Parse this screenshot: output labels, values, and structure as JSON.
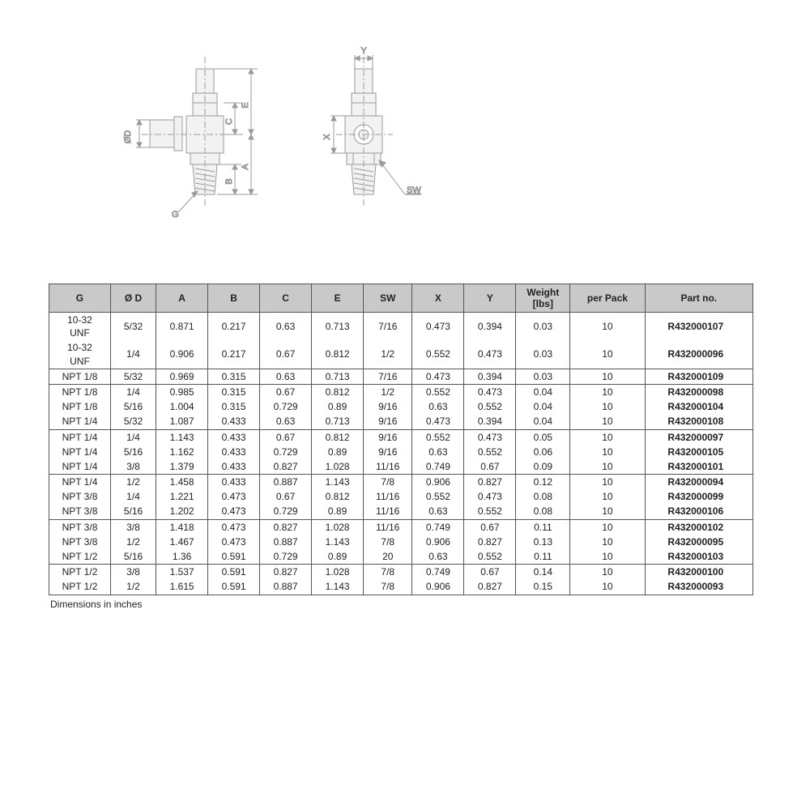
{
  "diagram": {
    "labels": {
      "OD": "ØD",
      "G": "G",
      "A": "A",
      "B": "B",
      "C": "C",
      "E": "E",
      "X": "X",
      "Y": "Y",
      "SW": "SW"
    },
    "stroke": "#9a9a9a",
    "fill_light": "#e8e8e8"
  },
  "table": {
    "header_bg": "#c9c9c9",
    "border_color": "#555555",
    "text_color": "#222222",
    "columns": [
      "G",
      "Ø D",
      "A",
      "B",
      "C",
      "E",
      "SW",
      "X",
      "Y",
      "Weight\n[lbs]",
      "per Pack",
      "Part no."
    ],
    "groups": [
      [
        {
          "G": "10-32\nUNF",
          "OD": "5/32",
          "A": "0.871",
          "B": "0.217",
          "C": "0.63",
          "E": "0.713",
          "SW": "7/16",
          "X": "0.473",
          "Y": "0.394",
          "W": "0.03",
          "PP": "10",
          "PN": "R432000107"
        },
        {
          "G": "10-32\nUNF",
          "OD": "1/4",
          "A": "0.906",
          "B": "0.217",
          "C": "0.67",
          "E": "0.812",
          "SW": "1/2",
          "X": "0.552",
          "Y": "0.473",
          "W": "0.03",
          "PP": "10",
          "PN": "R432000096"
        }
      ],
      [
        {
          "G": "NPT 1/8",
          "OD": "5/32",
          "A": "0.969",
          "B": "0.315",
          "C": "0.63",
          "E": "0.713",
          "SW": "7/16",
          "X": "0.473",
          "Y": "0.394",
          "W": "0.03",
          "PP": "10",
          "PN": "R432000109"
        }
      ],
      [
        {
          "G": "NPT 1/8",
          "OD": "1/4",
          "A": "0.985",
          "B": "0.315",
          "C": "0.67",
          "E": "0.812",
          "SW": "1/2",
          "X": "0.552",
          "Y": "0.473",
          "W": "0.04",
          "PP": "10",
          "PN": "R432000098"
        },
        {
          "G": "NPT 1/8",
          "OD": "5/16",
          "A": "1.004",
          "B": "0.315",
          "C": "0.729",
          "E": "0.89",
          "SW": "9/16",
          "X": "0.63",
          "Y": "0.552",
          "W": "0.04",
          "PP": "10",
          "PN": "R432000104"
        },
        {
          "G": "NPT 1/4",
          "OD": "5/32",
          "A": "1.087",
          "B": "0.433",
          "C": "0.63",
          "E": "0.713",
          "SW": "9/16",
          "X": "0.473",
          "Y": "0.394",
          "W": "0.04",
          "PP": "10",
          "PN": "R432000108"
        }
      ],
      [
        {
          "G": "NPT 1/4",
          "OD": "1/4",
          "A": "1.143",
          "B": "0.433",
          "C": "0.67",
          "E": "0.812",
          "SW": "9/16",
          "X": "0.552",
          "Y": "0.473",
          "W": "0.05",
          "PP": "10",
          "PN": "R432000097"
        },
        {
          "G": "NPT 1/4",
          "OD": "5/16",
          "A": "1.162",
          "B": "0.433",
          "C": "0.729",
          "E": "0.89",
          "SW": "9/16",
          "X": "0.63",
          "Y": "0.552",
          "W": "0.06",
          "PP": "10",
          "PN": "R432000105"
        },
        {
          "G": "NPT 1/4",
          "OD": "3/8",
          "A": "1.379",
          "B": "0.433",
          "C": "0.827",
          "E": "1.028",
          "SW": "11/16",
          "X": "0.749",
          "Y": "0.67",
          "W": "0.09",
          "PP": "10",
          "PN": "R432000101"
        }
      ],
      [
        {
          "G": "NPT 1/4",
          "OD": "1/2",
          "A": "1.458",
          "B": "0.433",
          "C": "0.887",
          "E": "1.143",
          "SW": "7/8",
          "X": "0.906",
          "Y": "0.827",
          "W": "0.12",
          "PP": "10",
          "PN": "R432000094"
        },
        {
          "G": "NPT 3/8",
          "OD": "1/4",
          "A": "1.221",
          "B": "0.473",
          "C": "0.67",
          "E": "0.812",
          "SW": "11/16",
          "X": "0.552",
          "Y": "0.473",
          "W": "0.08",
          "PP": "10",
          "PN": "R432000099"
        },
        {
          "G": "NPT 3/8",
          "OD": "5/16",
          "A": "1.202",
          "B": "0.473",
          "C": "0.729",
          "E": "0.89",
          "SW": "11/16",
          "X": "0.63",
          "Y": "0.552",
          "W": "0.08",
          "PP": "10",
          "PN": "R432000106"
        }
      ],
      [
        {
          "G": "NPT 3/8",
          "OD": "3/8",
          "A": "1.418",
          "B": "0.473",
          "C": "0.827",
          "E": "1.028",
          "SW": "11/16",
          "X": "0.749",
          "Y": "0.67",
          "W": "0.11",
          "PP": "10",
          "PN": "R432000102"
        },
        {
          "G": "NPT 3/8",
          "OD": "1/2",
          "A": "1.467",
          "B": "0.473",
          "C": "0.887",
          "E": "1.143",
          "SW": "7/8",
          "X": "0.906",
          "Y": "0.827",
          "W": "0.13",
          "PP": "10",
          "PN": "R432000095"
        },
        {
          "G": "NPT 1/2",
          "OD": "5/16",
          "A": "1.36",
          "B": "0.591",
          "C": "0.729",
          "E": "0.89",
          "SW": "20",
          "X": "0.63",
          "Y": "0.552",
          "W": "0.11",
          "PP": "10",
          "PN": "R432000103"
        }
      ],
      [
        {
          "G": "NPT 1/2",
          "OD": "3/8",
          "A": "1.537",
          "B": "0.591",
          "C": "0.827",
          "E": "1.028",
          "SW": "7/8",
          "X": "0.749",
          "Y": "0.67",
          "W": "0.14",
          "PP": "10",
          "PN": "R432000100"
        },
        {
          "G": "NPT 1/2",
          "OD": "1/2",
          "A": "1.615",
          "B": "0.591",
          "C": "0.887",
          "E": "1.143",
          "SW": "7/8",
          "X": "0.906",
          "Y": "0.827",
          "W": "0.15",
          "PP": "10",
          "PN": "R432000093"
        }
      ]
    ]
  },
  "footnote": "Dimensions in inches"
}
